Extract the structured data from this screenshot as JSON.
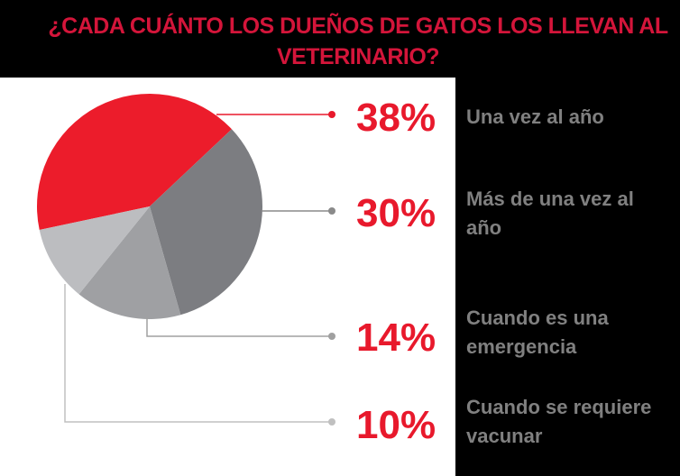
{
  "chart_data": {
    "type": "pie",
    "title": "¿CADA CUÁNTO LOS DUEÑOS DE GATOS LOS LLEVAN AL VETERINARIO?",
    "slices": [
      {
        "label": "Una vez al año",
        "value": 38,
        "display": "38%",
        "color": "#ec1c2b",
        "line": "#e8192c"
      },
      {
        "label": "Más de una vez al año",
        "value": 30,
        "display": "30%",
        "color": "#7c7d81",
        "line": "#8a8a8a"
      },
      {
        "label": "Cuando es una emergencia",
        "value": 14,
        "display": "14%",
        "color": "#9fa0a3",
        "line": "#a0a0a0"
      },
      {
        "label": "Cuando se requiere vacunar",
        "value": 10,
        "display": "10%",
        "color": "#bcbdc0",
        "line": "#c0c0c0"
      }
    ]
  }
}
